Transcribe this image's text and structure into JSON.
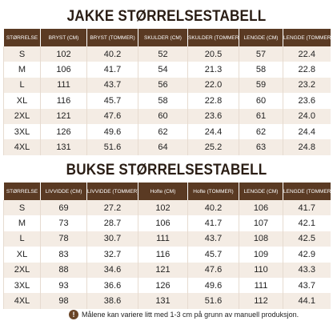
{
  "tables": [
    {
      "title": "JAKKE STØRRELSESTABELL",
      "header": [
        "STØRRELSE",
        "BRYST (CM)",
        "BRYST (TOMMER)",
        "SKULDER (CM)",
        "SKULDER (TOMMER)",
        "LENGDE (CM)",
        "LENGDE (TOMMER)"
      ],
      "rows": [
        [
          "S",
          "102",
          "40.2",
          "52",
          "20.5",
          "57",
          "22.4"
        ],
        [
          "M",
          "106",
          "41.7",
          "54",
          "21.3",
          "58",
          "22.8"
        ],
        [
          "L",
          "111",
          "43.7",
          "56",
          "22.0",
          "59",
          "23.2"
        ],
        [
          "XL",
          "116",
          "45.7",
          "58",
          "22.8",
          "60",
          "23.6"
        ],
        [
          "2XL",
          "121",
          "47.6",
          "60",
          "23.6",
          "61",
          "24.0"
        ],
        [
          "3XL",
          "126",
          "49.6",
          "62",
          "24.4",
          "62",
          "24.4"
        ],
        [
          "4XL",
          "131",
          "51.6",
          "64",
          "25.2",
          "63",
          "24.8"
        ]
      ]
    },
    {
      "title": "BUKSE STØRRELSESTABELL",
      "header": [
        "STØRRELSE",
        "LIVVIDDE (CM)",
        "LIVVIDDE (TOMMER)",
        "Hofte (CM)",
        "Hofte (TOMMER)",
        "LENGDE (CM)",
        "LENGDE (TOMMER)"
      ],
      "rows": [
        [
          "S",
          "69",
          "27.2",
          "102",
          "40.2",
          "106",
          "41.7"
        ],
        [
          "M",
          "73",
          "28.7",
          "106",
          "41.7",
          "107",
          "42.1"
        ],
        [
          "L",
          "78",
          "30.7",
          "111",
          "43.7",
          "108",
          "42.5"
        ],
        [
          "XL",
          "83",
          "32.7",
          "116",
          "45.7",
          "109",
          "42.9"
        ],
        [
          "2XL",
          "88",
          "34.6",
          "121",
          "47.6",
          "110",
          "43.3"
        ],
        [
          "3XL",
          "93",
          "36.6",
          "126",
          "49.6",
          "111",
          "43.7"
        ],
        [
          "4XL",
          "98",
          "38.6",
          "131",
          "51.6",
          "112",
          "44.1"
        ]
      ]
    }
  ],
  "note": "Målene kan variere litt med 1-3 cm på grunn av manuell produksjon."
}
